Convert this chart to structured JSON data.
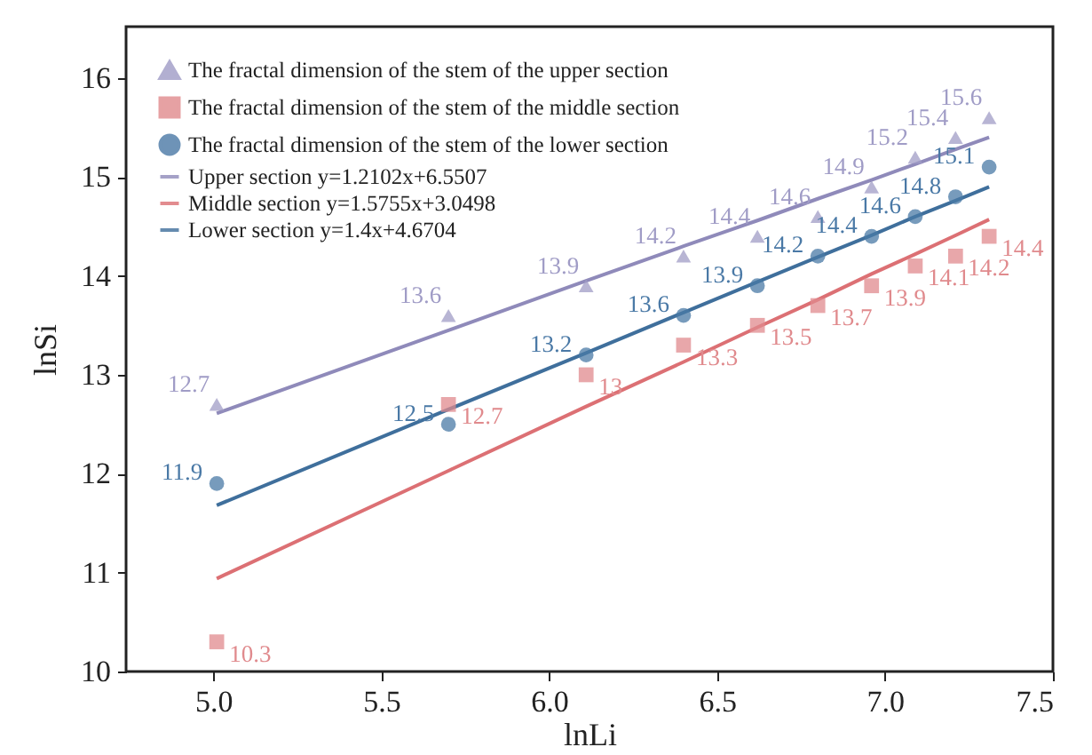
{
  "chart_data": {
    "type": "scatter",
    "xlabel": "lnLi",
    "ylabel": "lnSi",
    "xlim": [
      4.74,
      7.5
    ],
    "ylim": [
      10,
      16.52
    ],
    "xticks": [
      {
        "value": 5,
        "label": "5.0"
      },
      5.5,
      {
        "value": 6,
        "label": "6.0"
      },
      6.5,
      {
        "value": 7,
        "label": "7.0"
      },
      7.5
    ],
    "yticks": [
      10,
      11,
      12,
      13,
      14,
      15,
      16
    ],
    "grid": false,
    "legend": "top left",
    "x": [
      5.01,
      5.7,
      6.11,
      6.4,
      6.62,
      6.8,
      6.96,
      7.09,
      7.21,
      7.31
    ],
    "series": [
      {
        "name": "The fractal dimension of the stem of the upper section",
        "color": "#a09cc6",
        "marker": "triangle",
        "values": [
          12.7,
          13.6,
          13.9,
          14.2,
          14.4,
          14.6,
          14.9,
          15.2,
          15.4,
          15.6
        ],
        "value_labels": [
          "12.7",
          "13.6",
          "13.9",
          "14.2",
          "14.4",
          "14.6",
          "14.9",
          "15.2",
          "15.4",
          "15.6"
        ]
      },
      {
        "name": "The fractal dimension of the stem of the middle section",
        "color": "#e08a8d",
        "marker": "square",
        "values": [
          10.3,
          12.7,
          13,
          13.3,
          13.5,
          13.7,
          13.9,
          14.1,
          14.2,
          14.4
        ],
        "value_labels": [
          "10.3",
          "12.7",
          "13",
          "13.3",
          "13.5",
          "13.7",
          "13.9",
          "14.1",
          "14.2",
          "14.4"
        ]
      },
      {
        "name": "The fractal dimension of the stem of the lower section",
        "color": "#4a79a6",
        "marker": "circle",
        "values": [
          11.9,
          12.5,
          13.2,
          13.6,
          13.9,
          14.2,
          14.4,
          14.6,
          14.8,
          15.1
        ],
        "value_labels": [
          "11.9",
          "12.5",
          "13.2",
          "13.6",
          "13.9",
          "14.2",
          "14.4",
          "14.6",
          "14.8",
          "15.1"
        ]
      },
      {
        "name": "Upper section  y=1.2102x+6.5507",
        "type": "line",
        "color": "#8f8aba",
        "values": [
          12.61,
          13.45,
          13.95,
          14.3,
          14.56,
          14.78,
          14.97,
          15.13,
          15.28,
          15.4
        ]
      },
      {
        "name": "Middle section  y=1.5755x+3.0498",
        "type": "line",
        "color": "#dc7074",
        "values": [
          10.94,
          12.03,
          12.68,
          13.13,
          13.48,
          13.76,
          14.02,
          14.22,
          14.41,
          14.57
        ]
      },
      {
        "name": "Lower section  y=1.4x+4.6704",
        "type": "line",
        "color": "#3f6f9c",
        "values": [
          11.68,
          12.65,
          13.22,
          13.63,
          13.94,
          14.19,
          14.41,
          14.6,
          14.76,
          14.9
        ]
      }
    ]
  }
}
